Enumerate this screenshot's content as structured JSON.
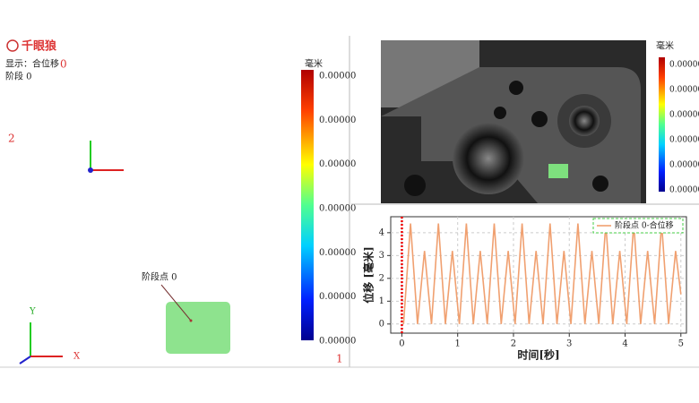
{
  "logo": {
    "text": "千眼狼"
  },
  "left_panel": {
    "display_label": "显示：合位移",
    "stage_label": "阶段 0",
    "marker_top": "0",
    "marker_left": "2",
    "marker_bottom": "1",
    "point_label": "阶段点 0",
    "axis_y": "Y",
    "axis_x": "X",
    "colorbar": {
      "title": "毫米",
      "ticks": [
        "0.00000",
        "0.00000",
        "0.00000",
        "0.00000",
        "0.00000",
        "0.00000",
        "0.00000"
      ]
    }
  },
  "image_panel": {
    "colorbar": {
      "title": "毫米",
      "ticks": [
        "0.00000",
        "0.00000",
        "0.00000",
        "0.00000",
        "0.00000",
        "0.00000"
      ]
    }
  },
  "chart_data": {
    "type": "line",
    "x_label": "时间[秒]",
    "y_label": "位移 [毫米]",
    "xlim": [
      -0.2,
      5.1
    ],
    "ylim": [
      -0.4,
      4.7
    ],
    "xticks": [
      0,
      1,
      2,
      3,
      4,
      5
    ],
    "yticks": [
      0,
      1,
      2,
      3,
      4
    ],
    "grid": true,
    "legend": "upper right",
    "cursor_x": 0,
    "x": [
      0.03,
      0.155,
      0.28,
      0.405,
      0.53,
      0.655,
      0.78,
      0.905,
      1.03,
      1.155,
      1.28,
      1.405,
      1.53,
      1.655,
      1.78,
      1.905,
      2.03,
      2.155,
      2.28,
      2.405,
      2.53,
      2.655,
      2.78,
      2.905,
      3.03,
      3.155,
      3.28,
      3.405,
      3.53,
      3.655,
      3.78,
      3.905,
      4.03,
      4.155,
      4.28,
      4.405,
      4.53,
      4.655,
      4.78,
      4.905,
      5.0
    ],
    "series": [
      {
        "name": "阶段点 0-合位移",
        "color": "#f0a070",
        "values": [
          0,
          4.4,
          0,
          3.2,
          0,
          4.4,
          0,
          3.2,
          0,
          4.4,
          0,
          3.2,
          0,
          4.4,
          0,
          3.2,
          0,
          4.4,
          0,
          3.2,
          0,
          4.4,
          0,
          3.2,
          0,
          4.4,
          0,
          3.2,
          0,
          4.4,
          0,
          3.2,
          0,
          4.4,
          0,
          3.2,
          0,
          4.4,
          0,
          3.2,
          1.3
        ]
      }
    ]
  }
}
